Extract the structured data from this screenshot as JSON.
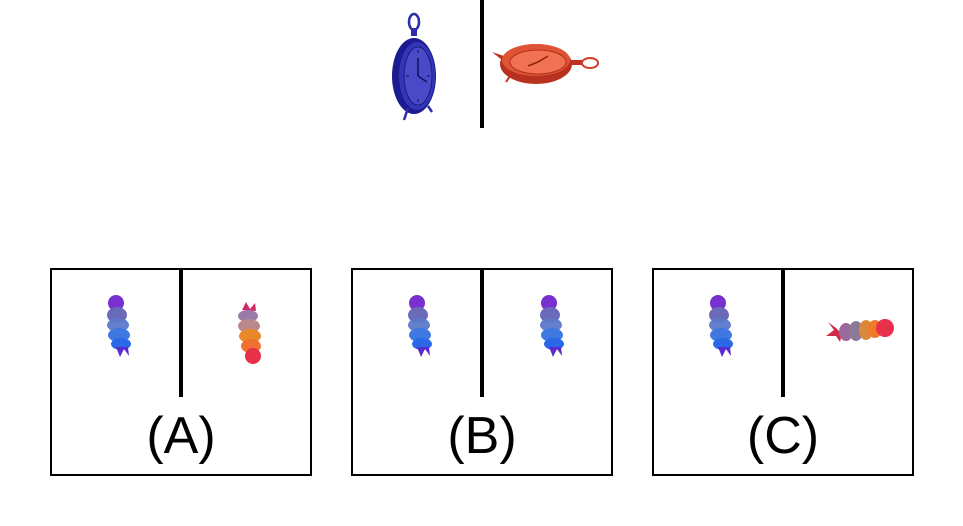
{
  "example": {
    "left_object_icon": "blue-clock-upright-icon",
    "right_object_icon": "red-clock-lying-icon",
    "left_color": "#2e2ea8",
    "right_color": "#d8482c"
  },
  "options": [
    {
      "label": "(A)",
      "left_icon": "figure-upright-icon",
      "right_icon": "figure-flipped-icon"
    },
    {
      "label": "(B)",
      "left_icon": "figure-upright-icon",
      "right_icon": "figure-upright-icon"
    },
    {
      "label": "(C)",
      "left_icon": "figure-upright-icon",
      "right_icon": "figure-lying-icon"
    }
  ],
  "colors": {
    "figure_purple": "#7a2fd0",
    "figure_blue": "#3a6fe0",
    "figure_gray": "#8a8aa8",
    "figure_orange": "#e8842a",
    "figure_red": "#e8304a"
  }
}
